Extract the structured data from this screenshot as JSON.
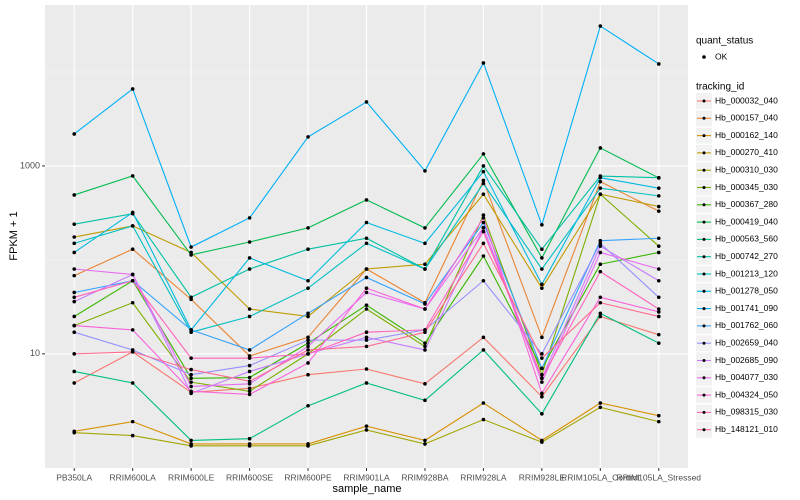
{
  "chart_data": {
    "type": "line",
    "x_label": "sample_name",
    "y_label": "FPKM + 1",
    "categories": [
      "PB350LA",
      "RRIM600LA",
      "RRIM600LE",
      "RRIM600SE",
      "RRIM600PE",
      "RRIM901LA",
      "RRIM928BA",
      "RRIM928LA",
      "RRIM928LE",
      "RRIM105LA_Control",
      "RRIM105LA_Stressed"
    ],
    "y_log": true,
    "ylim": [
      0.61,
      51600
    ],
    "yticks": [
      10,
      1000
    ],
    "y_minor_ticks": [
      100,
      10000
    ],
    "grid": true,
    "point_legend_title": "quant_status",
    "point_legend_entries": [
      "OK"
    ],
    "legend_title": "tracking_id",
    "legend_position": "right",
    "series": [
      {
        "name": "Hb_000032_040",
        "color": "#F8766D",
        "values": [
          4.9,
          10.5,
          3.9,
          4.3,
          6.0,
          6.9,
          4.8,
          15,
          3.5,
          25,
          16
        ]
      },
      {
        "name": "Hb_000157_040",
        "color": "#EA8331",
        "values": [
          68,
          130,
          38,
          9.5,
          15,
          80,
          35,
          700,
          15,
          680,
          330
        ]
      },
      {
        "name": "Hb_000162_140",
        "color": "#D89000",
        "values": [
          1.5,
          1.9,
          1.1,
          1.1,
          1.1,
          1.7,
          1.2,
          3.0,
          1.2,
          3.0,
          2.2
        ]
      },
      {
        "name": "Hb_000270_410",
        "color": "#C09B00",
        "values": [
          175,
          230,
          120,
          30,
          25,
          80,
          90,
          500,
          50,
          500,
          370
        ]
      },
      {
        "name": "Hb_000310_030",
        "color": "#A3A500",
        "values": [
          1.45,
          1.35,
          1.05,
          1.05,
          1.05,
          1.55,
          1.1,
          2.0,
          1.15,
          2.7,
          1.9
        ]
      },
      {
        "name": "Hb_000345_030",
        "color": "#7CAE00",
        "values": [
          20,
          35,
          5.0,
          4.0,
          10,
          30,
          12,
          300,
          6,
          500,
          140
        ]
      },
      {
        "name": "Hb_000367_280",
        "color": "#39B600",
        "values": [
          25,
          60,
          5.5,
          5.6,
          13,
          33,
          13,
          110,
          7,
          90,
          120
        ]
      },
      {
        "name": "Hb_000419_040",
        "color": "#00BB4E",
        "values": [
          491,
          783,
          113,
          155,
          219,
          435,
          219,
          1342,
          105,
          1554,
          745
        ]
      },
      {
        "name": "Hb_000563_560",
        "color": "#00BF7D",
        "values": [
          6.5,
          4.9,
          1.2,
          1.25,
          2.8,
          4.9,
          3.2,
          11,
          2.3,
          27,
          13
        ]
      },
      {
        "name": "Hb_000742_270",
        "color": "#00C1A3",
        "values": [
          240,
          310,
          40,
          80,
          130,
          170,
          80,
          1000,
          130,
          780,
          750
        ]
      },
      {
        "name": "Hb_001213_120",
        "color": "#00BFC4",
        "values": [
          150,
          230,
          17,
          25,
          50,
          150,
          80,
          650,
          80,
          580,
          480
        ]
      },
      {
        "name": "Hb_001278_050",
        "color": "#00BAE0",
        "values": [
          120,
          320,
          18,
          105,
          60,
          250,
          150,
          870,
          55,
          750,
          580
        ]
      },
      {
        "name": "Hb_001741_090",
        "color": "#00B0F6",
        "values": [
          2190,
          6590,
          137,
          280,
          2035,
          4800,
          885,
          12470,
          236,
          30800,
          12170
        ]
      },
      {
        "name": "Hb_001762_060",
        "color": "#35A2FF",
        "values": [
          45,
          60,
          18,
          11,
          27,
          65,
          34,
          250,
          7,
          160,
          170
        ]
      },
      {
        "name": "Hb_002659_040",
        "color": "#9590FF",
        "values": [
          17,
          11,
          6,
          7.5,
          14,
          14,
          18,
          60,
          10,
          150,
          40
        ]
      },
      {
        "name": "Hb_002685_090",
        "color": "#C77CFF",
        "values": [
          36,
          70,
          3.8,
          6.5,
          10,
          15,
          11,
          220,
          5.5,
          140,
          60
        ]
      },
      {
        "name": "Hb_004077_030",
        "color": "#E76BF3",
        "values": [
          80,
          70,
          4.5,
          4.8,
          12,
          45,
          30,
          220,
          5,
          120,
          80
        ]
      },
      {
        "name": "Hb_004324_050",
        "color": "#FA62DB",
        "values": [
          20,
          18,
          4,
          3.7,
          8,
          50,
          30,
          280,
          3.8,
          40,
          28
        ]
      },
      {
        "name": "Hb_098315_030",
        "color": "#FF62BC",
        "values": [
          40,
          60,
          9,
          9,
          10,
          17,
          18,
          200,
          5.5,
          75,
          30
        ]
      },
      {
        "name": "Hb_148121_010",
        "color": "#FF6C91",
        "values": [
          10,
          10.5,
          6.8,
          5.1,
          11,
          12,
          17,
          150,
          9,
          35,
          25
        ]
      }
    ]
  }
}
